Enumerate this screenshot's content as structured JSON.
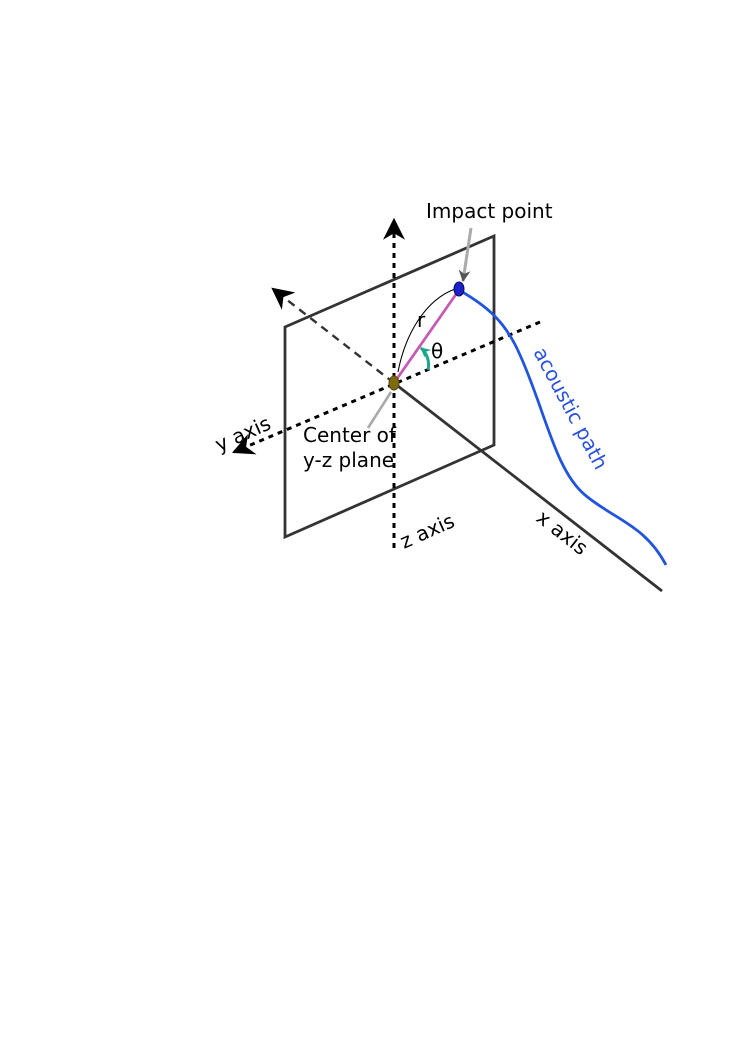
{
  "diagram": {
    "labels": {
      "impact_point": "Impact point",
      "r": "r",
      "theta": "θ",
      "center_line1": "Center of",
      "center_line2": "y-z plane",
      "y_axis": "y axis",
      "z_axis": "z axis",
      "x_axis": "x axis",
      "acoustic_path": "acoustic path"
    },
    "colors": {
      "plane": "#333333",
      "axes": "#000000",
      "x_axis": "#333333",
      "radius": "#c85ab4",
      "angle_arc": "#1aa58c",
      "acoustic_path": "#2255dd",
      "acoustic_label": "#2a52e0",
      "impact_point": "#1a22c8",
      "center_point": "#7f6a14",
      "leader": "#aaaaaa"
    }
  }
}
